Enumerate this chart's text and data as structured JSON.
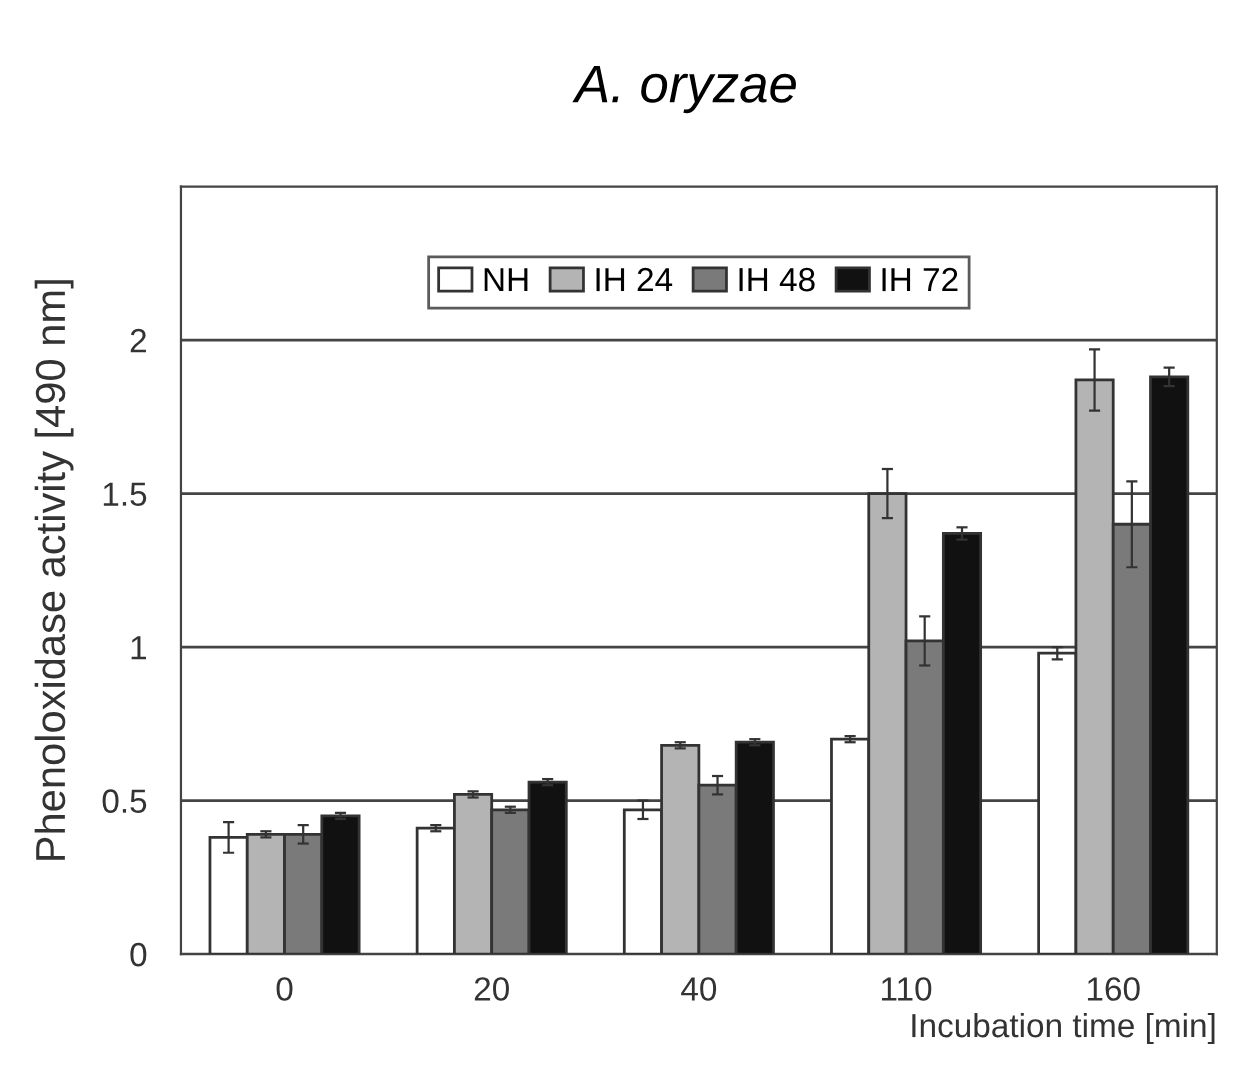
{
  "chart_data": {
    "type": "bar",
    "title": "A. oryzae",
    "xlabel": "Incubation time [min]",
    "ylabel": "Phenoloxidase activity [490 nm]",
    "categories": [
      "0",
      "20",
      "40",
      "110",
      "160"
    ],
    "series": [
      {
        "name": "NH",
        "color": "#ffffff",
        "values": [
          0.38,
          0.41,
          0.47,
          0.7,
          0.98
        ],
        "errors": [
          0.05,
          0.01,
          0.03,
          0.01,
          0.02
        ]
      },
      {
        "name": "IH 24",
        "color": "#b4b4b4",
        "values": [
          0.39,
          0.52,
          0.68,
          1.5,
          1.87
        ],
        "errors": [
          0.01,
          0.01,
          0.01,
          0.08,
          0.1
        ]
      },
      {
        "name": "IH 48",
        "color": "#7a7a7a",
        "values": [
          0.39,
          0.47,
          0.55,
          1.02,
          1.4
        ],
        "errors": [
          0.03,
          0.01,
          0.03,
          0.08,
          0.14
        ]
      },
      {
        "name": "IH 72",
        "color": "#111111",
        "values": [
          0.45,
          0.56,
          0.69,
          1.37,
          1.88
        ],
        "errors": [
          0.01,
          0.01,
          0.01,
          0.02,
          0.03
        ]
      }
    ],
    "ylim": [
      0,
      2.5
    ],
    "yticks": [
      0,
      0.5,
      1,
      1.5,
      2
    ],
    "grid": "y",
    "legend": "top"
  }
}
